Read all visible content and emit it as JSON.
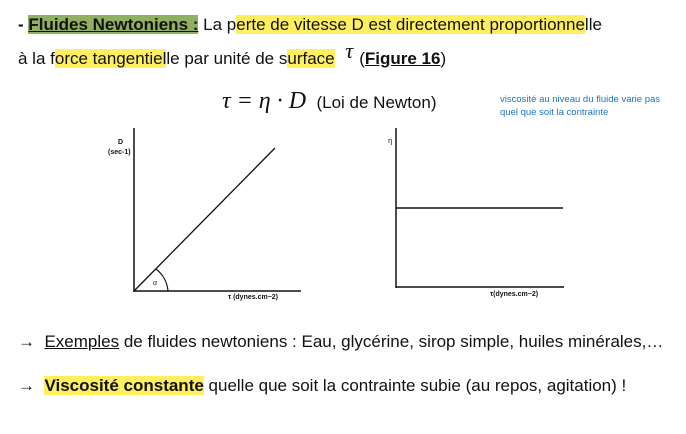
{
  "heading": {
    "dash": "- ",
    "title": "Fluides Newtoniens :",
    "text_a": " La p",
    "text_hl1": "erte de vitesse D est directement proportionne",
    "text_b": "lle"
  },
  "line2": {
    "a": "à la f",
    "hl1": "orce tangentiel",
    "b": "le par unité de s",
    "hl2": "urface",
    "tau": "τ",
    "paren_open": "(",
    "figure": "Figure 16",
    "paren_close": ")"
  },
  "formula": {
    "equation": "τ = η · D",
    "label": "(Loi de Newton)"
  },
  "note": "viscosité au niveau du fluide varie pas quel que soit la contrainte",
  "figure_left": {
    "y_label": "D",
    "y_unit": "(sec-1)",
    "x_label": "τ (dynes.cm−2)",
    "angle": "α"
  },
  "figure_right": {
    "y_label": "η",
    "x_label": "τ(dynes.cm−2)"
  },
  "bullets": [
    {
      "arrow": "→",
      "emph": "Exemples",
      "text": " de fluides newtoniens : Eau, glycérine, sirop simple, huiles minérales,…"
    },
    {
      "arrow": "→",
      "emph": "Viscosité constante",
      "text": " quelle que soit la contrainte subie (au repos, agitation) !"
    }
  ]
}
